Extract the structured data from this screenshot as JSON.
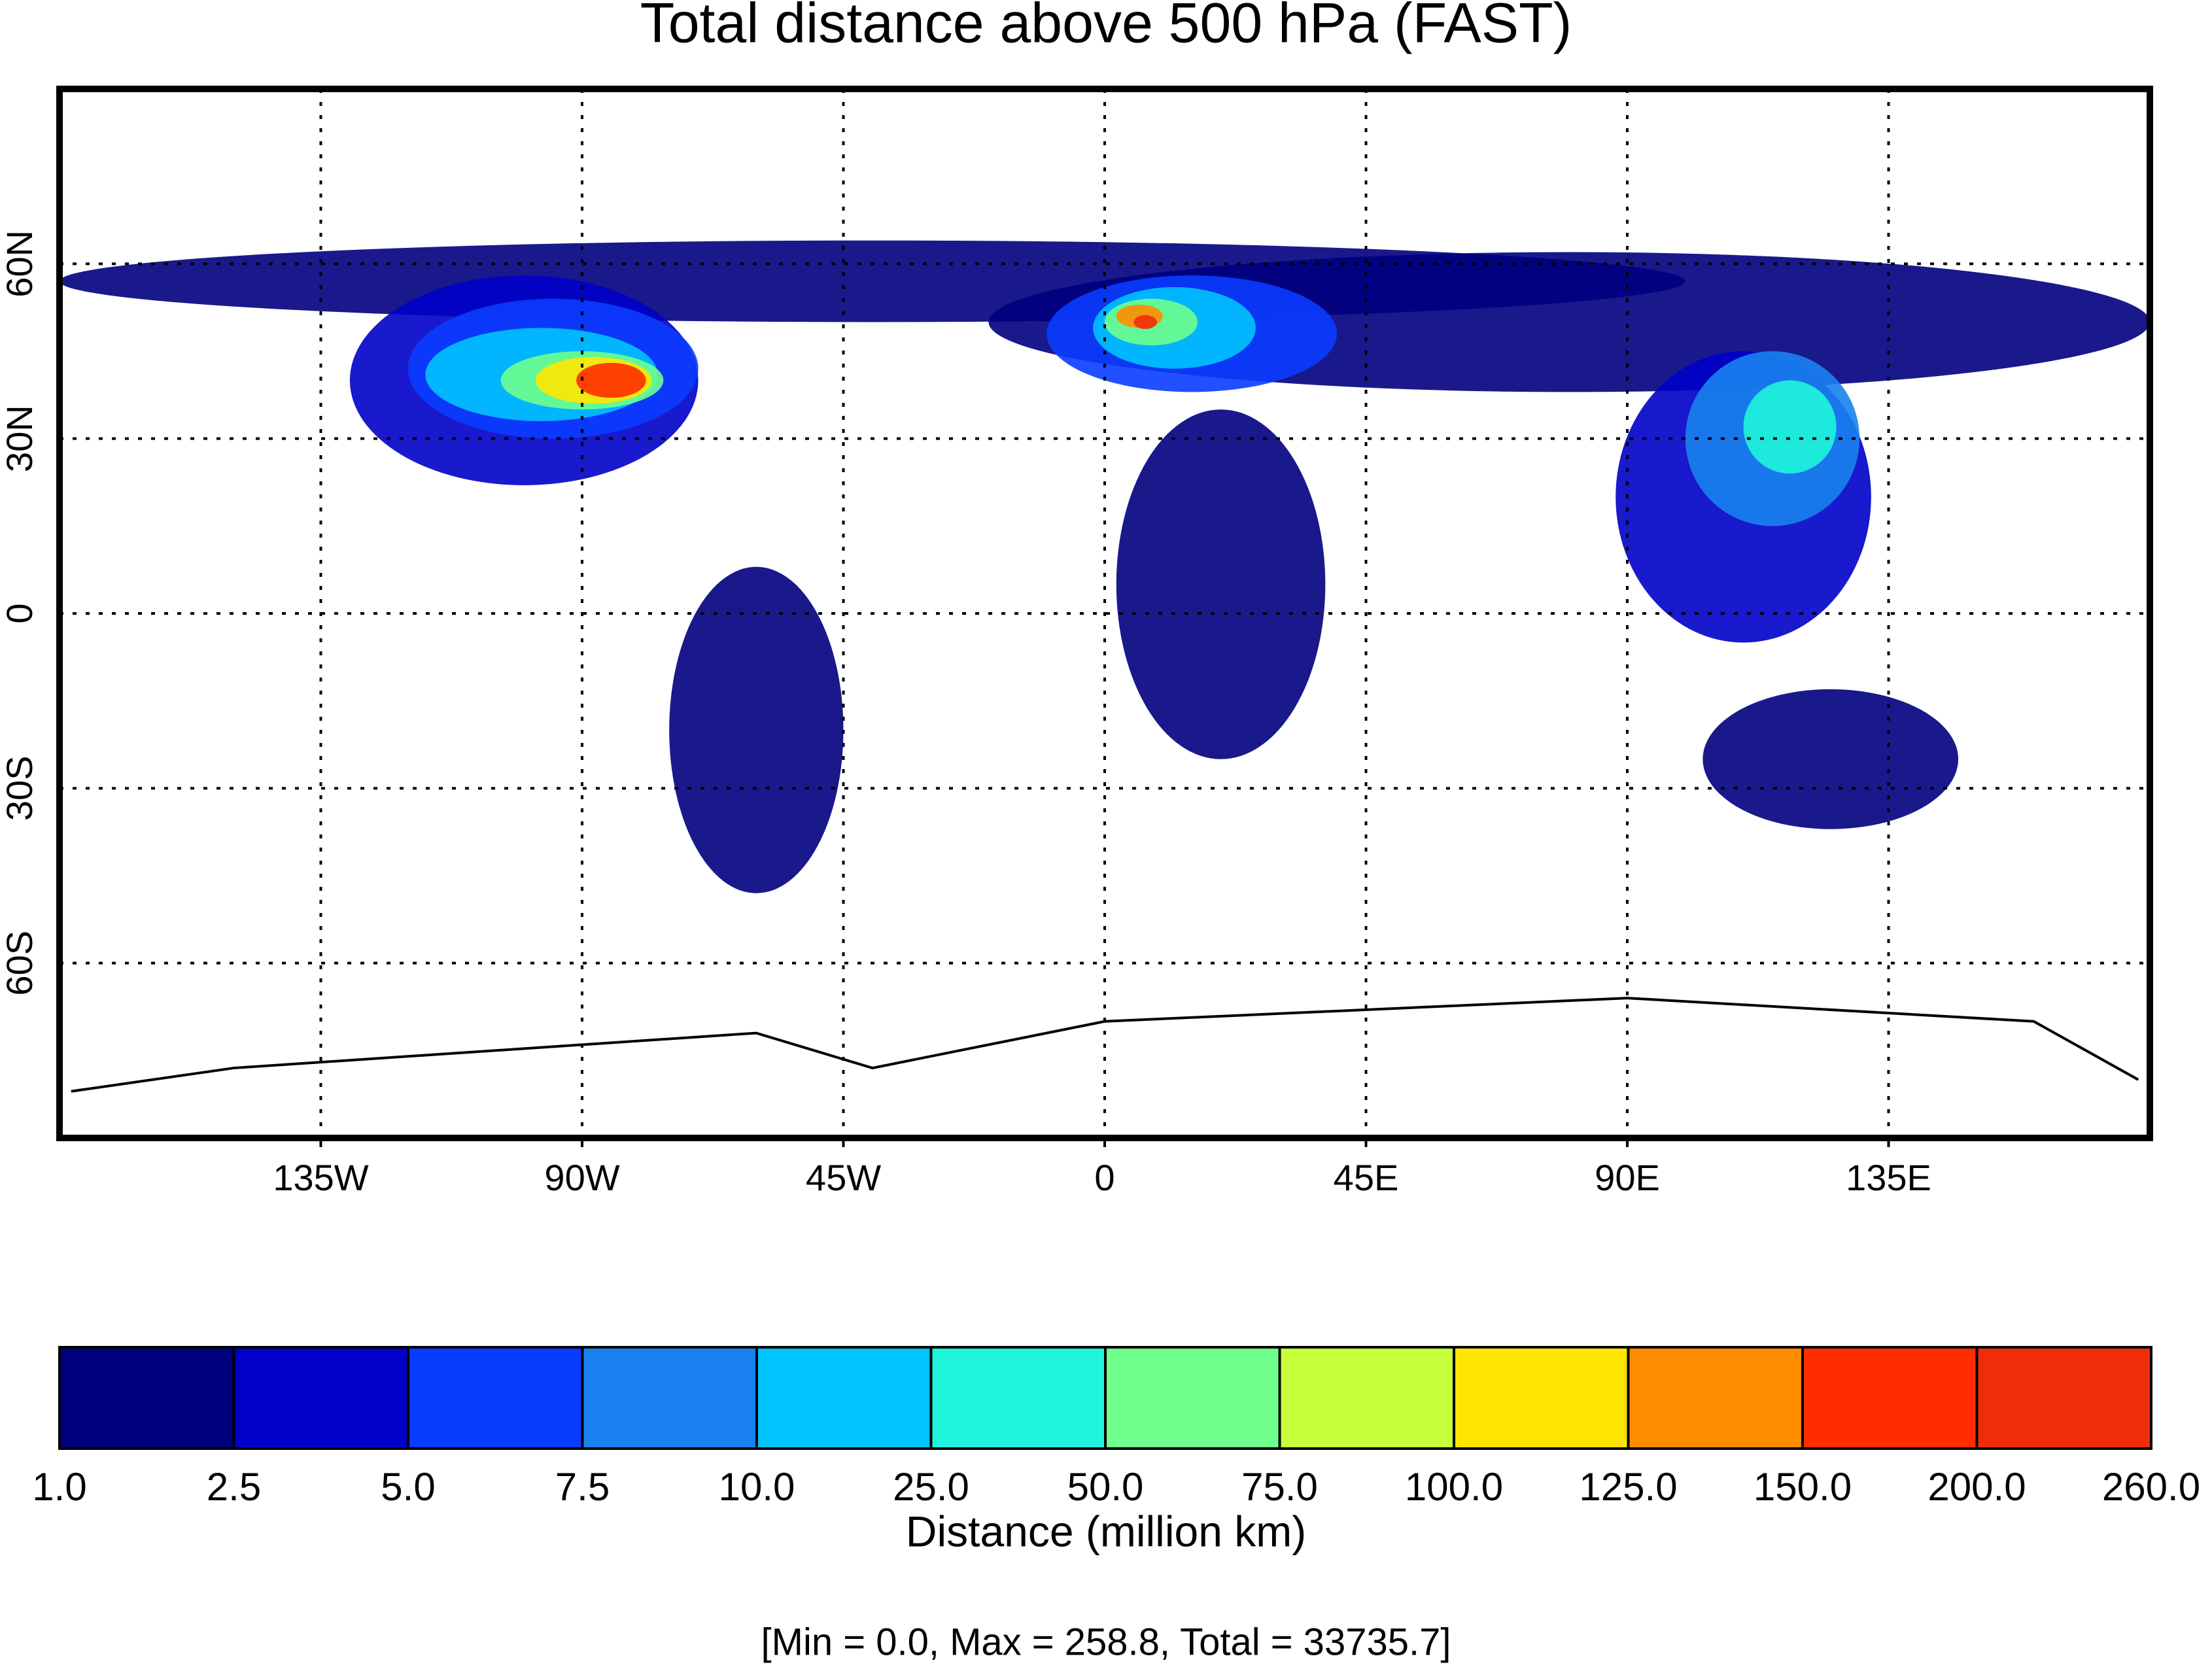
{
  "chart_data": {
    "type": "map",
    "title": "Total distance above 500 hPa (FAST)",
    "xlim": [
      -180,
      180
    ],
    "ylim": [
      -90,
      90
    ],
    "xticks": [
      {
        "value": -135,
        "label": "135W"
      },
      {
        "value": -90,
        "label": "90W"
      },
      {
        "value": -45,
        "label": "45W"
      },
      0,
      {
        "value": 45,
        "label": "45E"
      },
      {
        "value": 90,
        "label": "90E"
      },
      {
        "value": 135,
        "label": "135E"
      }
    ],
    "yticks": [
      {
        "value": 60,
        "label": "60N"
      },
      {
        "value": 30,
        "label": "30N"
      },
      0,
      {
        "value": -30,
        "label": "30S"
      },
      {
        "value": -60,
        "label": "60S"
      }
    ],
    "grid": true,
    "colorbar": {
      "label": "Distance (million km)",
      "levels": [
        {
          "value": 1,
          "label": "1.0"
        },
        2.5,
        {
          "value": 5,
          "label": "5.0"
        },
        7.5,
        {
          "value": 10,
          "label": "10.0"
        },
        {
          "value": 25,
          "label": "25.0"
        },
        {
          "value": 50,
          "label": "50.0"
        },
        {
          "value": 75,
          "label": "75.0"
        },
        {
          "value": 100,
          "label": "100.0"
        },
        {
          "value": 125,
          "label": "125.0"
        },
        {
          "value": 150,
          "label": "150.0"
        },
        {
          "value": 200,
          "label": "200.0"
        },
        {
          "value": 260,
          "label": "260.0"
        }
      ],
      "colors": [
        "#00007f",
        "#0000c8",
        "#0a3cff",
        "#1a82f0",
        "#00c3ff",
        "#1ef5dc",
        "#6eff8c",
        "#c8ff3c",
        "#ffe600",
        "#ff8c00",
        "#ff2d00",
        "#f02d0a"
      ]
    },
    "stats": "[Min = 0.0, Max = 258.8, Total = 33735.7]"
  }
}
